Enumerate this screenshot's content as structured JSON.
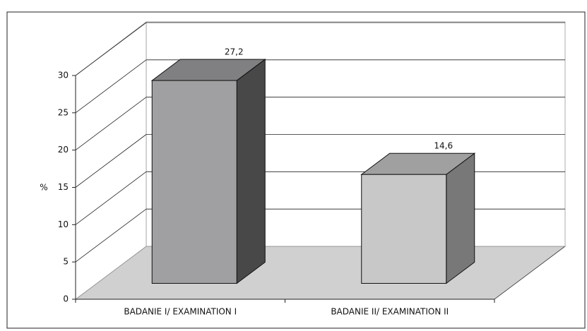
{
  "chart_data": {
    "type": "bar3d",
    "y_label": "%",
    "categories": [
      "BADANIE I/ EXAMINATION I",
      "BADANIE II/ EXAMINATION II"
    ],
    "values": [
      27.2,
      14.6
    ],
    "value_labels": [
      "27,2",
      "14,6"
    ],
    "colors": [
      "#a0a0a2",
      "#c8c8c8"
    ],
    "ylim": [
      0,
      30
    ],
    "yticks": [
      0,
      5,
      10,
      15,
      20,
      25,
      30
    ],
    "grid": true
  }
}
